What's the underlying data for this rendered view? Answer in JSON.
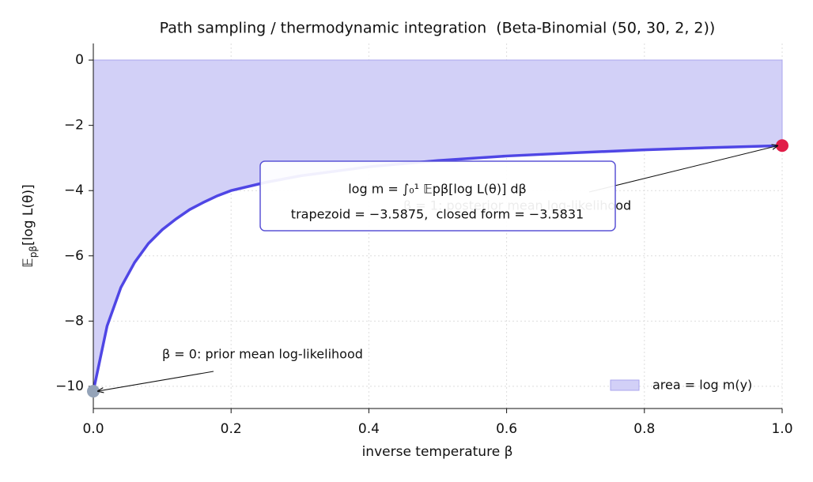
{
  "chart_data": {
    "type": "line",
    "title": "Path sampling / thermodynamic integration  (Beta-Binomial (50, 30, 2, 2))",
    "xlabel": "inverse temperature β",
    "ylabel": {
      "main": "𝔼",
      "sub": "pβ",
      "rest": "[log L(θ)]"
    },
    "x": [
      0,
      0.02,
      0.04,
      0.06,
      0.08,
      0.1,
      0.12,
      0.14,
      0.16,
      0.18,
      0.2,
      0.25,
      0.3,
      0.4,
      0.5,
      0.6,
      0.7,
      0.8,
      0.9,
      1.0
    ],
    "series": [
      {
        "name": "area = log m(y)",
        "color": "#d2d0f7",
        "line_color": "#4f46e5",
        "values": [
          -10.15,
          -8.15,
          -6.97,
          -6.2,
          -5.62,
          -5.2,
          -4.87,
          -4.58,
          -4.36,
          -4.16,
          -4.0,
          -3.75,
          -3.55,
          -3.27,
          -3.08,
          -2.94,
          -2.84,
          -2.75,
          -2.68,
          -2.62
        ]
      }
    ],
    "start_color": "#94a3b8",
    "end_color": "#e11d48",
    "xlim": [
      0,
      1
    ],
    "ylim": [
      -10.68,
      0.51
    ],
    "xticks": [
      {
        "value": 0,
        "label": "0.0"
      },
      0.2,
      0.4,
      0.6,
      0.8,
      {
        "value": 1,
        "label": "1.0"
      }
    ],
    "yticks": [
      {
        "value": 0,
        "label": "0"
      },
      {
        "value": -2,
        "label": "−2"
      },
      {
        "value": -4,
        "label": "−4"
      },
      {
        "value": -6,
        "label": "−6"
      },
      {
        "value": -8,
        "label": "−8"
      },
      {
        "value": -10,
        "label": "−10"
      }
    ],
    "grid": true,
    "legend": "lower right",
    "annotations": {
      "start": "β = 0: prior mean log-likelihood",
      "end": "β = 1: posterior mean log-likelihood",
      "formula": "log m = ∫₀¹ 𝔼pβ[log L(θ)] dβ",
      "result": "trapezoid = −3.5875,  closed form = −3.5831"
    }
  }
}
